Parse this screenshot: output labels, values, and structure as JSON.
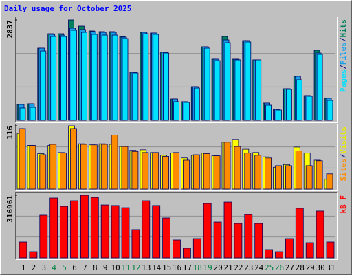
{
  "chart_data": [
    {
      "type": "bar",
      "title": "Daily usage for October 2025",
      "ylim": [
        0,
        2837
      ],
      "yticks": [
        2837
      ],
      "legend_separator": "/",
      "series": [
        {
          "name": "Hits",
          "color": "#00805c",
          "values": [
            447,
            466,
            2040,
            2448,
            2448,
            2837,
            2662,
            2526,
            2507,
            2507,
            2370,
            1360,
            2487,
            2468,
            1924,
            602,
            525,
            952,
            2079,
            1729,
            2370,
            1729,
            2254,
            1710,
            486,
            311,
            894,
            1244,
            700,
            1982,
            622
          ]
        },
        {
          "name": "Files",
          "color": "#1aa0e8",
          "values": [
            447,
            466,
            2040,
            2429,
            2409,
            2604,
            2565,
            2507,
            2487,
            2487,
            2351,
            1360,
            2487,
            2468,
            1924,
            602,
            525,
            952,
            2079,
            1729,
            2273,
            1729,
            2254,
            1710,
            486,
            311,
            894,
            1244,
            700,
            1904,
            622
          ]
        },
        {
          "name": "Pages",
          "color": "#00e0ff",
          "values": [
            350,
            369,
            1962,
            2370,
            2370,
            2545,
            2487,
            2429,
            2409,
            2409,
            2312,
            1341,
            2448,
            2429,
            1904,
            525,
            505,
            913,
            2040,
            1690,
            2196,
            1710,
            2215,
            1710,
            427,
            291,
            874,
            1146,
            680,
            1865,
            563
          ]
        }
      ]
    },
    {
      "type": "bar",
      "ylim": [
        0,
        116
      ],
      "yticks": [
        116
      ],
      "legend_separator": "/",
      "series": [
        {
          "name": "Visits",
          "color": "#ffff00",
          "values": [
            102,
            80,
            65,
            80,
            67,
            116,
            83,
            81,
            83,
            82,
            78,
            71,
            72,
            67,
            62,
            66,
            57,
            62,
            66,
            61,
            86,
            91,
            73,
            67,
            59,
            40,
            45,
            77,
            66,
            53,
            18
          ]
        },
        {
          "name": "Sites",
          "color": "#ff8c00",
          "values": [
            111,
            80,
            63,
            82,
            66,
            111,
            82,
            81,
            82,
            99,
            78,
            69,
            67,
            67,
            60,
            67,
            53,
            63,
            65,
            61,
            86,
            78,
            66,
            62,
            57,
            43,
            43,
            70,
            43,
            52,
            28
          ]
        }
      ]
    },
    {
      "type": "bar",
      "ylim": [
        0,
        316961
      ],
      "yticks": [
        316961
      ],
      "categories": [
        "1",
        "2",
        "3",
        "4",
        "5",
        "6",
        "7",
        "8",
        "9",
        "10",
        "11",
        "12",
        "13",
        "14",
        "15",
        "16",
        "17",
        "18",
        "19",
        "20",
        "21",
        "22",
        "23",
        "24",
        "25",
        "26",
        "27",
        "28",
        "29",
        "30",
        "31"
      ],
      "category_colors": [
        "#000000",
        "#000000",
        "#000000",
        "#008040",
        "#008040",
        "#000000",
        "#000000",
        "#000000",
        "#000000",
        "#000000",
        "#008040",
        "#008040",
        "#000000",
        "#000000",
        "#000000",
        "#000000",
        "#000000",
        "#008040",
        "#008040",
        "#000000",
        "#000000",
        "#000000",
        "#000000",
        "#000000",
        "#008040",
        "#008040",
        "#000000",
        "#000000",
        "#000000",
        "#000000",
        "#000000"
      ],
      "series": [
        {
          "name": "kB F",
          "color": "#ff0000",
          "values": [
            80100,
            31300,
            216000,
            303000,
            261000,
            289000,
            316961,
            306000,
            268000,
            265000,
            254000,
            143000,
            289000,
            265000,
            202000,
            90600,
            48800,
            97500,
            275000,
            181000,
            282000,
            174000,
            219000,
            174000,
            41800,
            31300,
            97500,
            251000,
            76600,
            237000,
            80100
          ]
        }
      ]
    }
  ]
}
